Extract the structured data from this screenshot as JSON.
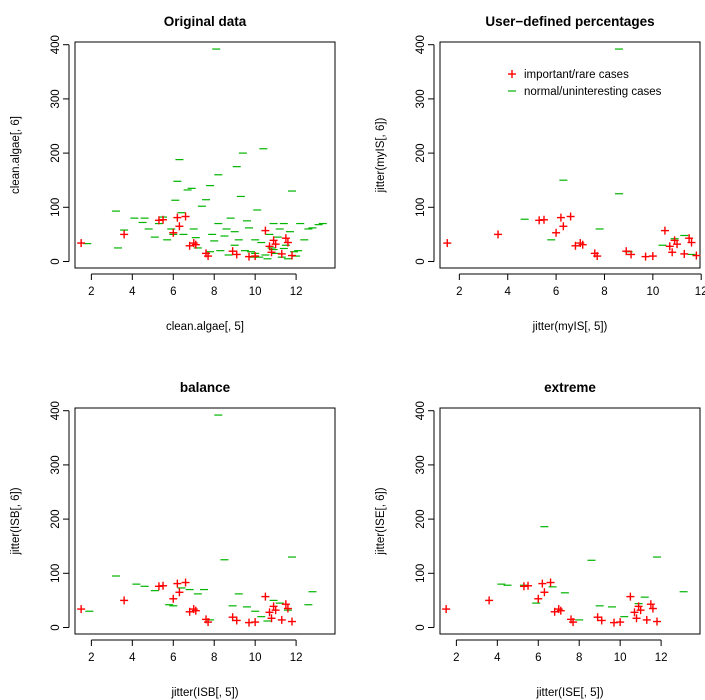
{
  "colors": {
    "important": "#ff0000",
    "normal": "#00b400",
    "axis": "#000000"
  },
  "shared": {
    "rare_x": [
      1.5,
      3.6,
      5.3,
      5.5,
      6.0,
      6.2,
      6.3,
      6.6,
      6.8,
      7.0,
      7.1,
      7.6,
      7.7,
      8.9,
      9.1,
      9.7,
      10.0,
      10.5,
      10.7,
      10.8,
      10.9,
      11.0,
      11.3,
      11.5,
      11.6,
      11.8
    ],
    "rare_y": [
      34,
      50,
      76,
      77,
      53,
      81,
      65,
      83,
      29,
      34,
      31,
      15,
      10,
      19,
      13,
      9,
      10,
      57,
      28,
      17,
      39,
      32,
      14,
      43,
      35,
      11
    ]
  },
  "chart_data": [
    {
      "type": "scatter",
      "title": "Original data",
      "xlabel": "clean.algae[, 5]",
      "ylabel": "clean.algae[, 6]",
      "xlim": [
        1.2,
        13.9
      ],
      "ylim": [
        -12,
        405
      ],
      "xticks": [
        "2",
        "4",
        "6",
        "8",
        "10",
        "12"
      ],
      "yticks": [
        "0",
        "100",
        "200",
        "300",
        "400"
      ],
      "legend": null,
      "normal_points": [
        [
          1.8,
          33
        ],
        [
          3.2,
          93
        ],
        [
          3.6,
          58
        ],
        [
          3.3,
          25
        ],
        [
          4.1,
          80
        ],
        [
          4.5,
          72
        ],
        [
          4.6,
          80
        ],
        [
          4.8,
          60
        ],
        [
          5.1,
          45
        ],
        [
          5.3,
          70
        ],
        [
          5.5,
          82
        ],
        [
          5.7,
          40
        ],
        [
          5.9,
          60
        ],
        [
          6.1,
          113
        ],
        [
          6.2,
          148
        ],
        [
          6.3,
          188
        ],
        [
          6.4,
          90
        ],
        [
          6.5,
          50
        ],
        [
          6.7,
          132
        ],
        [
          6.9,
          135
        ],
        [
          7.1,
          44
        ],
        [
          7.2,
          25
        ],
        [
          7.4,
          102
        ],
        [
          7.6,
          114
        ],
        [
          7.8,
          140
        ],
        [
          7.9,
          50
        ],
        [
          8.0,
          38
        ],
        [
          8.1,
          392
        ],
        [
          8.2,
          160
        ],
        [
          8.3,
          20
        ],
        [
          8.5,
          47
        ],
        [
          8.6,
          60
        ],
        [
          8.8,
          80
        ],
        [
          9.0,
          30
        ],
        [
          9.1,
          175
        ],
        [
          9.3,
          120
        ],
        [
          9.4,
          200
        ],
        [
          9.5,
          20
        ],
        [
          9.7,
          62
        ],
        [
          9.8,
          18
        ],
        [
          9.9,
          8
        ],
        [
          10.0,
          40
        ],
        [
          10.1,
          95
        ],
        [
          10.2,
          8
        ],
        [
          10.4,
          208
        ],
        [
          10.5,
          12
        ],
        [
          10.6,
          5
        ],
        [
          10.7,
          50
        ],
        [
          10.8,
          25
        ],
        [
          10.9,
          70
        ],
        [
          11.0,
          15
        ],
        [
          11.1,
          45
        ],
        [
          11.2,
          60
        ],
        [
          11.3,
          8
        ],
        [
          11.4,
          70
        ],
        [
          11.5,
          30
        ],
        [
          11.7,
          55
        ],
        [
          11.8,
          130
        ],
        [
          11.9,
          18
        ],
        [
          12.0,
          10
        ],
        [
          12.2,
          70
        ],
        [
          12.4,
          40
        ],
        [
          12.6,
          60
        ],
        [
          12.8,
          62
        ],
        [
          13.1,
          68
        ],
        [
          13.3,
          70
        ],
        [
          6.0,
          50
        ],
        [
          7.0,
          60
        ],
        [
          8.2,
          70
        ],
        [
          9.0,
          55
        ],
        [
          9.6,
          75
        ],
        [
          10.3,
          35
        ],
        [
          11.6,
          5
        ],
        [
          12.1,
          20
        ],
        [
          8.7,
          12
        ],
        [
          7.8,
          18
        ],
        [
          10.9,
          22
        ],
        [
          10.0,
          15
        ],
        [
          11.4,
          24
        ],
        [
          9.2,
          40
        ]
      ]
    },
    {
      "type": "scatter",
      "title": "User−defined percentages",
      "xlabel": "jitter(myIS[, 5])",
      "ylabel": "jitter(myIS[, 6])",
      "xlim": [
        1.2,
        11.95
      ],
      "ylim": [
        -12,
        405
      ],
      "xticks": [
        "2",
        "4",
        "6",
        "8",
        "10",
        "12"
      ],
      "yticks": [
        "0",
        "100",
        "200",
        "300",
        "400"
      ],
      "legend": {
        "position": "top-right",
        "entries": [
          "important/rare cases",
          "normal/uninteresting cases"
        ]
      },
      "normal_points": [
        [
          4.7,
          78
        ],
        [
          5.8,
          40
        ],
        [
          6.3,
          150
        ],
        [
          8.6,
          125
        ],
        [
          10.4,
          30
        ],
        [
          10.9,
          42
        ],
        [
          11.3,
          48
        ],
        [
          11.6,
          13
        ],
        [
          9.0,
          18
        ],
        [
          7.8,
          60
        ],
        [
          8.6,
          392
        ]
      ]
    },
    {
      "type": "scatter",
      "title": "balance",
      "xlabel": "jitter(ISB[, 5])",
      "ylabel": "jitter(ISB[, 6])",
      "xlim": [
        1.2,
        13.9
      ],
      "ylim": [
        -12,
        405
      ],
      "xticks": [
        "2",
        "4",
        "6",
        "8",
        "10",
        "12"
      ],
      "yticks": [
        "0",
        "100",
        "200",
        "300",
        "400"
      ],
      "legend": null,
      "normal_points": [
        [
          1.9,
          30
        ],
        [
          3.2,
          95
        ],
        [
          4.2,
          80
        ],
        [
          4.6,
          76
        ],
        [
          5.1,
          68
        ],
        [
          5.8,
          42
        ],
        [
          6.0,
          40
        ],
        [
          6.4,
          73
        ],
        [
          6.8,
          70
        ],
        [
          7.2,
          62
        ],
        [
          7.5,
          70
        ],
        [
          7.8,
          14
        ],
        [
          8.2,
          392
        ],
        [
          8.5,
          125
        ],
        [
          8.9,
          40
        ],
        [
          9.2,
          62
        ],
        [
          9.6,
          38
        ],
        [
          10.0,
          30
        ],
        [
          10.3,
          20
        ],
        [
          10.6,
          12
        ],
        [
          10.9,
          50
        ],
        [
          11.2,
          45
        ],
        [
          11.6,
          32
        ],
        [
          11.8,
          130
        ],
        [
          12.6,
          42
        ],
        [
          12.8,
          66
        ]
      ]
    },
    {
      "type": "scatter",
      "title": "extreme",
      "xlabel": "jitter(ISE[, 5])",
      "ylabel": "jitter(ISE[, 6])",
      "xlim": [
        1.2,
        13.9
      ],
      "ylim": [
        -12,
        405
      ],
      "xticks": [
        "2",
        "4",
        "6",
        "8",
        "10",
        "12"
      ],
      "yticks": [
        "0",
        "100",
        "200",
        "300",
        "400"
      ],
      "legend": null,
      "normal_points": [
        [
          4.2,
          80
        ],
        [
          4.5,
          78
        ],
        [
          5.3,
          78
        ],
        [
          5.9,
          45
        ],
        [
          6.3,
          186
        ],
        [
          6.7,
          75
        ],
        [
          7.3,
          64
        ],
        [
          8.0,
          14
        ],
        [
          8.6,
          124
        ],
        [
          9.0,
          40
        ],
        [
          9.6,
          38
        ],
        [
          10.2,
          20
        ],
        [
          10.9,
          44
        ],
        [
          11.2,
          56
        ],
        [
          11.8,
          130
        ],
        [
          13.1,
          66
        ]
      ]
    }
  ]
}
